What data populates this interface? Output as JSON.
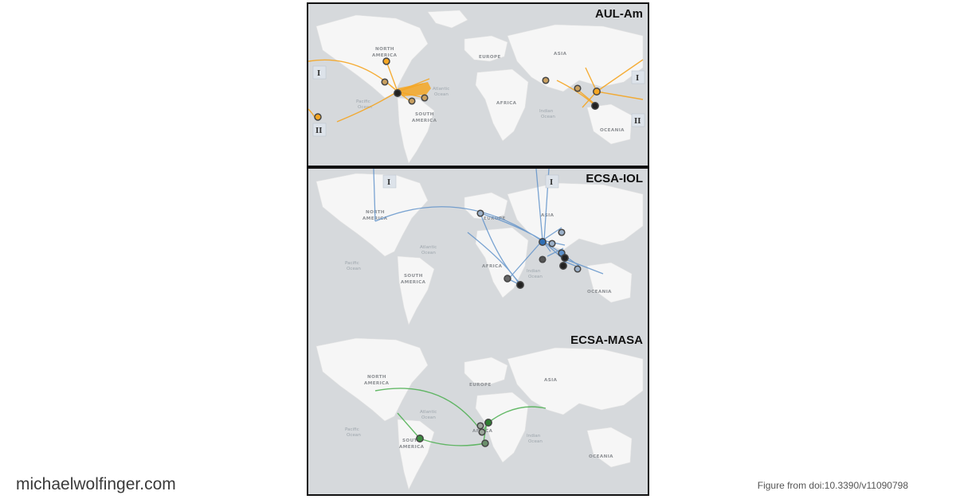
{
  "panels": [
    {
      "title": "AUL-Am",
      "color": "#f5a623",
      "labels": {
        "continents": [
          "NORTH",
          "AMERICA",
          "EUROPE",
          "ASIA",
          "AFRICA",
          "SOUTH",
          "AMERICA",
          "OCEANIA"
        ],
        "oceans": [
          "Pacific",
          "Ocean",
          "Atlantic",
          "Ocean",
          "Indian",
          "Ocean"
        ]
      },
      "markers": [
        "I",
        "II",
        "I",
        "II"
      ]
    },
    {
      "title": "ECSA-IOL",
      "color": "#5b8fc9",
      "labels": {
        "continents": [
          "NORTH",
          "AMERICA",
          "EUROPE",
          "ASIA",
          "AFRICA",
          "SOUTH",
          "AMERICA",
          "OCEANIA"
        ],
        "oceans": [
          "Pacific",
          "Ocean",
          "Atlantic",
          "Ocean",
          "Indian",
          "Ocean"
        ]
      },
      "markers": [
        "I",
        "I"
      ]
    },
    {
      "title": "ECSA-MASA",
      "color": "#4caf50",
      "labels": {
        "continents": [
          "NORTH",
          "AMERICA",
          "EUROPE",
          "ASIA",
          "AFRICA",
          "SOUTH",
          "AMERICA",
          "OCEANIA"
        ],
        "oceans": [
          "Pacific",
          "Ocean",
          "Atlantic",
          "Ocean",
          "Indian",
          "Ocean"
        ]
      },
      "markers": []
    }
  ],
  "footer": {
    "site": "michaelwolfinger.com",
    "credit": "Figure from doi:10.3390/v11090798"
  }
}
